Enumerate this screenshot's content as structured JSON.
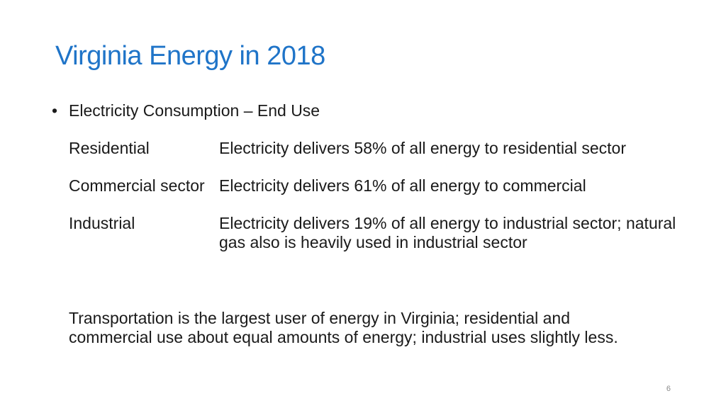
{
  "slide": {
    "title": "Virginia Energy in 2018",
    "bullet": {
      "symbol": "•",
      "text": "Electricity Consumption – End Use"
    },
    "rows": [
      {
        "label": "Residential",
        "desc": "Electricity delivers 58% of all energy to residential sector"
      },
      {
        "label": "Commercial sector",
        "desc": "Electricity delivers 61% of all energy to commercial"
      },
      {
        "label": "Industrial",
        "desc": "Electricity delivers 19% of all energy to industrial sector; natural gas also is heavily used in industrial sector"
      }
    ],
    "summary": "Transportation is the largest user of energy in Virginia; residential and commercial use about equal amounts of energy; industrial uses slightly less.",
    "page_number": "6"
  },
  "colors": {
    "title": "#1f74c8",
    "text": "#1a1a1a",
    "page_number": "#8a8a8a"
  }
}
